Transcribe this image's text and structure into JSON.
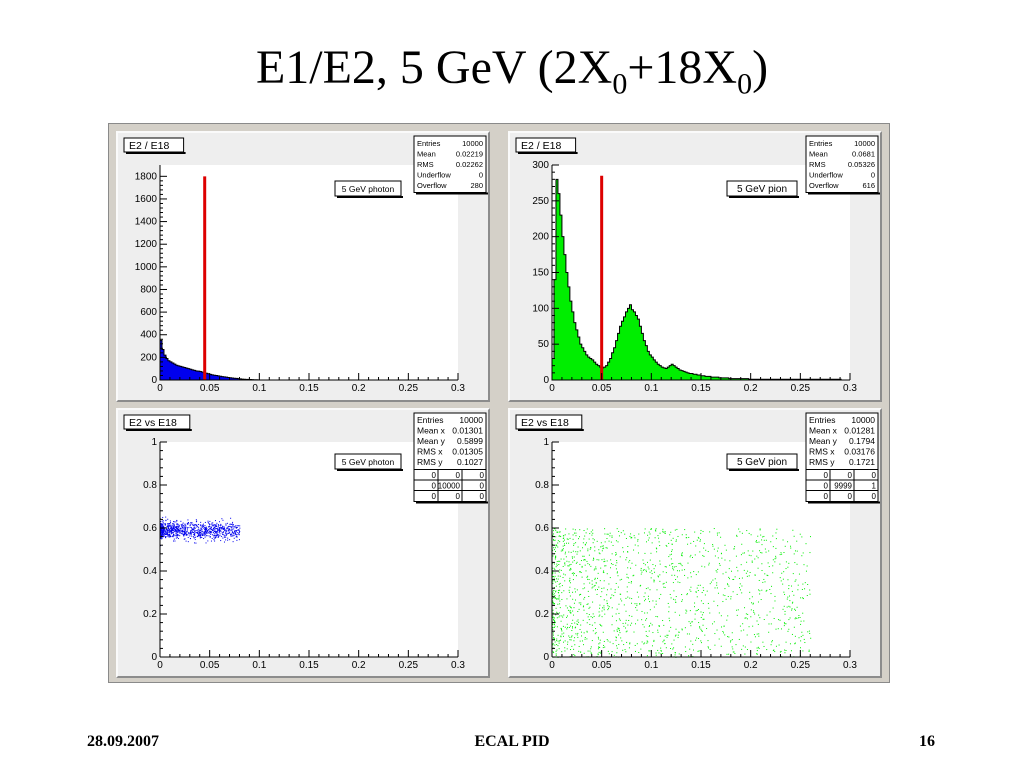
{
  "slide": {
    "title_main": "E1/E2, 5 GeV (2X",
    "title_sub1": "0",
    "title_mid": "+18X",
    "title_sub2": "0",
    "title_end": ")"
  },
  "footer": {
    "date": "28.09.2007",
    "center": "ECAL PID",
    "page": "16"
  },
  "colors": {
    "photon": "#0000ee",
    "pion": "#00ee00",
    "cut_line": "#dd0000",
    "pad_bg": "#eeeeee",
    "frame_bg": "#d4d0c8"
  },
  "chart_data": [
    {
      "type": "histogram",
      "title": "E2 / E18",
      "legend": "5 GeV photon",
      "color": "#0000ee",
      "stats": [
        {
          "label": "Entries",
          "value": "10000"
        },
        {
          "label": "Mean",
          "value": "0.02219"
        },
        {
          "label": "RMS",
          "value": "0.02262"
        },
        {
          "label": "Underflow",
          "value": "0"
        },
        {
          "label": "Overflow",
          "value": "280"
        }
      ],
      "xlim": [
        0,
        0.3
      ],
      "ylim": [
        0,
        1900
      ],
      "xticks": [
        0,
        0.05,
        0.1,
        0.15,
        0.2,
        0.25,
        0.3
      ],
      "xtick_labels": [
        "0",
        "0.05",
        "0.1",
        "0.15",
        "0.2",
        "0.25",
        "0.3"
      ],
      "yticks": [
        0,
        200,
        400,
        600,
        800,
        1000,
        1200,
        1400,
        1600,
        1800
      ],
      "ytick_labels": [
        "0",
        "200",
        "400",
        "600",
        "800",
        "1000",
        "1200",
        "1400",
        "1600",
        "1800"
      ],
      "cut_x": 0.045,
      "cut_ymax": 1800,
      "x": [
        0.001,
        0.003,
        0.005,
        0.007,
        0.009,
        0.011,
        0.013,
        0.015,
        0.017,
        0.019,
        0.021,
        0.023,
        0.025,
        0.027,
        0.029,
        0.031,
        0.033,
        0.035,
        0.037,
        0.039,
        0.041,
        0.043,
        0.045,
        0.047,
        0.049,
        0.051,
        0.053,
        0.055,
        0.057,
        0.059,
        0.061,
        0.063,
        0.065,
        0.067,
        0.069,
        0.071,
        0.073,
        0.075,
        0.077,
        0.079,
        0.081,
        0.083,
        0.085,
        0.087,
        0.089,
        0.091,
        0.093,
        0.095,
        0.097,
        0.099
      ],
      "values": [
        350,
        270,
        220,
        190,
        170,
        160,
        150,
        140,
        130,
        125,
        120,
        115,
        110,
        105,
        100,
        95,
        90,
        85,
        80,
        78,
        75,
        70,
        65,
        60,
        55,
        50,
        45,
        42,
        40,
        36,
        33,
        30,
        28,
        25,
        22,
        20,
        18,
        16,
        14,
        12,
        10,
        8,
        7,
        6,
        5,
        4,
        3,
        2,
        2,
        1
      ]
    },
    {
      "type": "histogram",
      "title": "E2 / E18",
      "legend": "5 GeV pion",
      "color": "#00ee00",
      "stats": [
        {
          "label": "Entries",
          "value": "10000"
        },
        {
          "label": "Mean",
          "value": "0.0681"
        },
        {
          "label": "RMS",
          "value": "0.05326"
        },
        {
          "label": "Underflow",
          "value": "0"
        },
        {
          "label": "Overflow",
          "value": "616"
        }
      ],
      "xlim": [
        0,
        0.3
      ],
      "ylim": [
        0,
        300
      ],
      "xticks": [
        0,
        0.05,
        0.1,
        0.15,
        0.2,
        0.25,
        0.3
      ],
      "xtick_labels": [
        "0",
        "0.05",
        "0.1",
        "0.15",
        "0.2",
        "0.25",
        "0.3"
      ],
      "yticks": [
        0,
        50,
        100,
        150,
        200,
        250,
        300
      ],
      "ytick_labels": [
        "0",
        "50",
        "100",
        "150",
        "200",
        "250",
        "300"
      ],
      "cut_x": 0.05,
      "cut_ymax": 285,
      "x": [
        0.001,
        0.003,
        0.005,
        0.007,
        0.009,
        0.011,
        0.013,
        0.015,
        0.017,
        0.019,
        0.021,
        0.023,
        0.025,
        0.027,
        0.029,
        0.031,
        0.033,
        0.035,
        0.037,
        0.039,
        0.041,
        0.043,
        0.045,
        0.047,
        0.049,
        0.051,
        0.053,
        0.055,
        0.057,
        0.059,
        0.061,
        0.063,
        0.065,
        0.067,
        0.069,
        0.071,
        0.073,
        0.075,
        0.077,
        0.079,
        0.081,
        0.083,
        0.085,
        0.087,
        0.089,
        0.091,
        0.093,
        0.095,
        0.097,
        0.099,
        0.101,
        0.103,
        0.105,
        0.107,
        0.109,
        0.111,
        0.113,
        0.115,
        0.117,
        0.119,
        0.121,
        0.123,
        0.125,
        0.127,
        0.129,
        0.131,
        0.133,
        0.135,
        0.137,
        0.139,
        0.141,
        0.143,
        0.145,
        0.147,
        0.149,
        0.151,
        0.153,
        0.155,
        0.157,
        0.159,
        0.161,
        0.163,
        0.165,
        0.167,
        0.169,
        0.171,
        0.173,
        0.175,
        0.177,
        0.179,
        0.181,
        0.183,
        0.185,
        0.187,
        0.189,
        0.191,
        0.193,
        0.195,
        0.197,
        0.199,
        0.21,
        0.23,
        0.25,
        0.27,
        0.29
      ],
      "values": [
        30,
        140,
        280,
        260,
        230,
        200,
        175,
        150,
        130,
        110,
        95,
        80,
        70,
        60,
        50,
        45,
        40,
        35,
        32,
        30,
        28,
        25,
        22,
        20,
        18,
        17,
        18,
        20,
        25,
        30,
        38,
        45,
        55,
        65,
        75,
        82,
        88,
        95,
        100,
        105,
        98,
        95,
        90,
        85,
        75,
        65,
        55,
        48,
        40,
        35,
        32,
        28,
        25,
        22,
        20,
        18,
        17,
        16,
        18,
        20,
        22,
        20,
        18,
        16,
        14,
        13,
        12,
        11,
        10,
        9,
        9,
        8,
        8,
        7,
        7,
        6,
        6,
        5,
        5,
        5,
        4,
        4,
        4,
        4,
        3,
        3,
        3,
        3,
        3,
        2,
        2,
        2,
        2,
        2,
        2,
        2,
        2,
        2,
        2,
        1,
        1,
        1,
        1,
        1,
        1
      ]
    },
    {
      "type": "scatter",
      "title": "E2 vs E18",
      "legend": "5 GeV photon",
      "color": "#0000ee",
      "stats": [
        {
          "label": "Entries",
          "value": "10000"
        },
        {
          "label": "Mean x",
          "value": "0.01301"
        },
        {
          "label": "Mean y",
          "value": "0.5899"
        },
        {
          "label": "RMS x",
          "value": "0.01305"
        },
        {
          "label": "RMS y",
          "value": "0.1027"
        }
      ],
      "grid3x3": [
        [
          "0",
          "0",
          "0"
        ],
        [
          "0",
          "10000",
          "0"
        ],
        [
          "0",
          "0",
          "0"
        ]
      ],
      "xlim": [
        0,
        0.3
      ],
      "ylim": [
        0,
        1
      ],
      "xticks": [
        0,
        0.05,
        0.1,
        0.15,
        0.2,
        0.25,
        0.3
      ],
      "xtick_labels": [
        "0",
        "0.05",
        "0.1",
        "0.15",
        "0.2",
        "0.25",
        "0.3"
      ],
      "yticks": [
        0,
        0.2,
        0.4,
        0.6,
        0.8,
        1
      ],
      "ytick_labels": [
        "0",
        "0.2",
        "0.4",
        "0.6",
        "0.8",
        "1"
      ],
      "cluster": {
        "x_range": [
          0.0,
          0.08
        ],
        "y_center": 0.59,
        "y_spread": 0.05
      }
    },
    {
      "type": "scatter",
      "title": "E2 vs E18",
      "legend": "5 GeV pion",
      "color": "#00ee00",
      "stats": [
        {
          "label": "Entries",
          "value": "10000"
        },
        {
          "label": "Mean x",
          "value": "0.01281"
        },
        {
          "label": "Mean y",
          "value": "0.1794"
        },
        {
          "label": "RMS x",
          "value": "0.03176"
        },
        {
          "label": "RMS y",
          "value": "0.1721"
        }
      ],
      "grid3x3": [
        [
          "0",
          "0",
          "0"
        ],
        [
          "0",
          "9999",
          "1"
        ],
        [
          "0",
          "0",
          "0"
        ]
      ],
      "xlim": [
        0,
        0.3
      ],
      "ylim": [
        0,
        1
      ],
      "xticks": [
        0,
        0.05,
        0.1,
        0.15,
        0.2,
        0.25,
        0.3
      ],
      "xtick_labels": [
        "0",
        "0.05",
        "0.1",
        "0.15",
        "0.2",
        "0.25",
        "0.3"
      ],
      "yticks": [
        0,
        0.2,
        0.4,
        0.6,
        0.8,
        1
      ],
      "ytick_labels": [
        "0",
        "0.2",
        "0.4",
        "0.6",
        "0.8",
        "1"
      ],
      "cluster": {
        "x_range": [
          0.0,
          0.26
        ],
        "y_center": 0.28,
        "y_spread": 0.3
      }
    }
  ]
}
